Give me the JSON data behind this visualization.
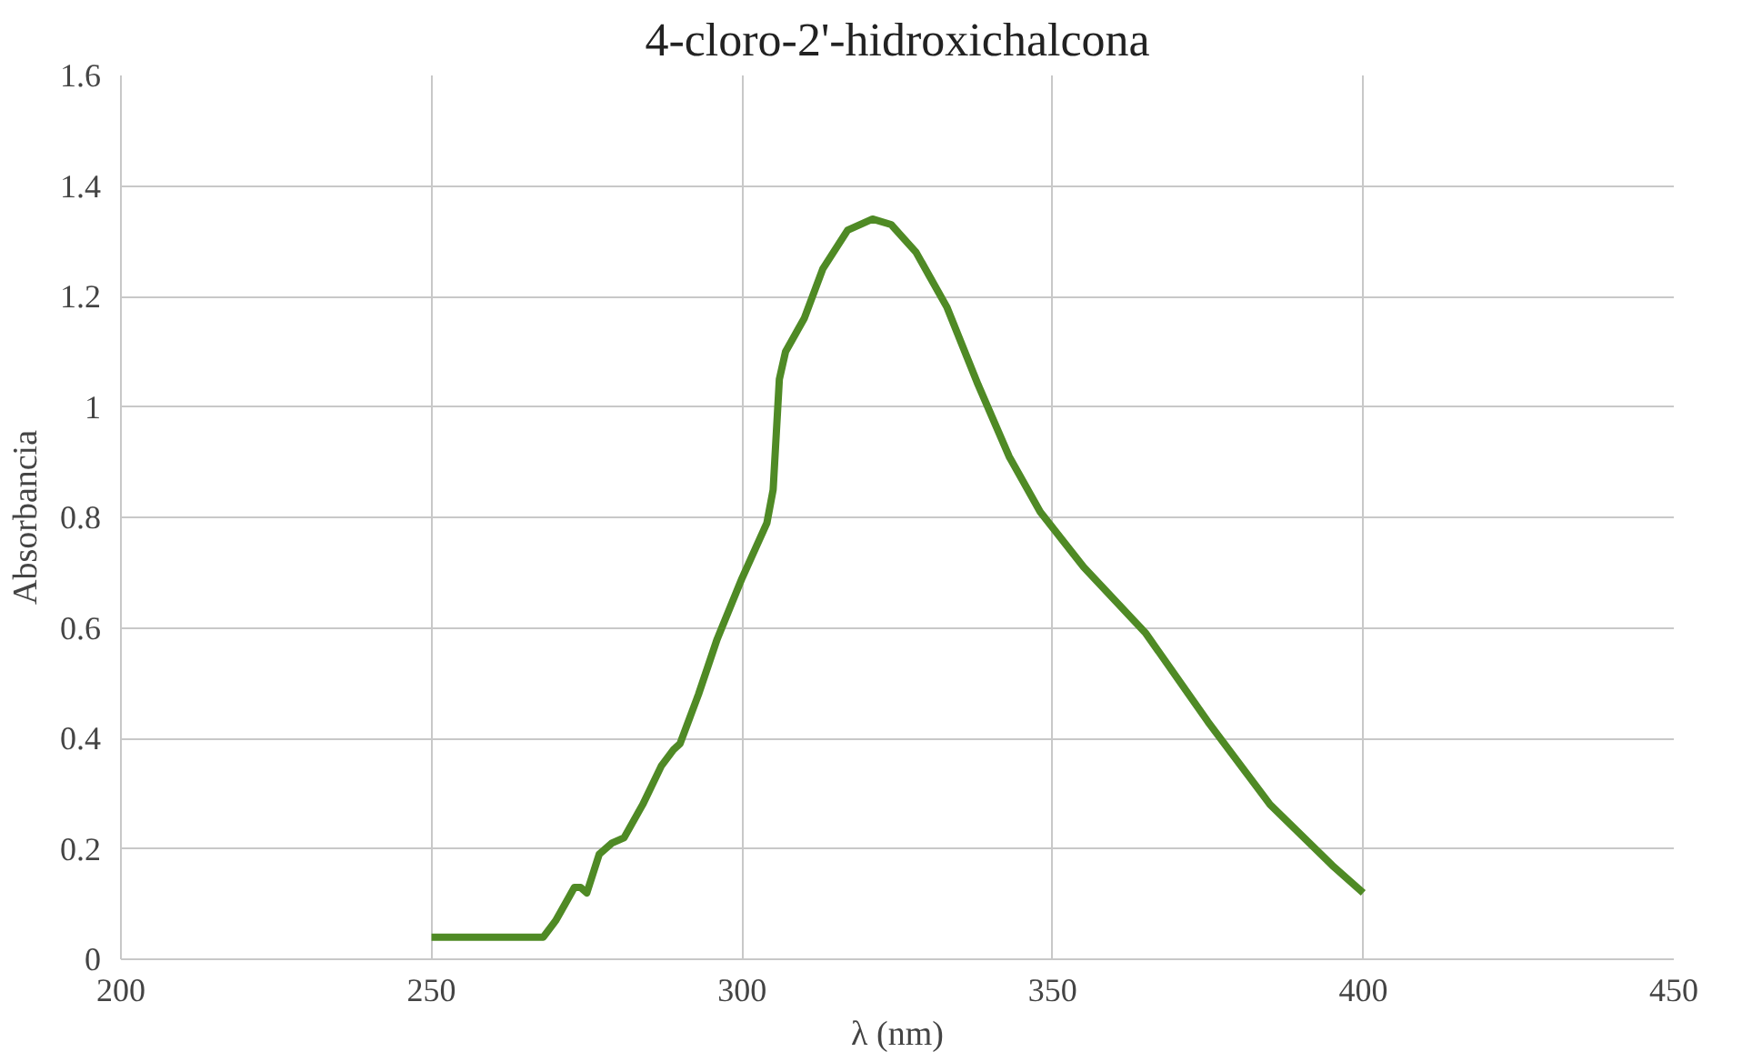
{
  "chart_data": {
    "type": "line",
    "title": "4-cloro-2'-hidroxichalcona",
    "xlabel": "λ (nm)",
    "ylabel": "Absorbancia",
    "series": [
      {
        "color": "#4f8a25",
        "x": [
          250,
          258,
          268,
          270,
          272,
          273,
          274,
          275,
          277,
          279,
          281,
          284,
          287,
          289,
          290,
          293,
          296,
          300,
          304,
          305,
          306,
          307,
          310,
          313,
          317,
          321,
          324,
          328,
          333,
          338,
          343,
          348,
          355,
          365,
          375,
          385,
          395,
          400
        ],
        "values": [
          0.04,
          0.04,
          0.04,
          0.07,
          0.11,
          0.13,
          0.13,
          0.12,
          0.19,
          0.21,
          0.22,
          0.28,
          0.35,
          0.38,
          0.39,
          0.48,
          0.58,
          0.69,
          0.79,
          0.85,
          1.05,
          1.1,
          1.16,
          1.25,
          1.32,
          1.34,
          1.33,
          1.28,
          1.18,
          1.04,
          0.91,
          0.81,
          0.71,
          0.59,
          0.43,
          0.28,
          0.17,
          0.12
        ]
      }
    ],
    "xlim": [
      200,
      450
    ],
    "xticks": [
      200,
      250,
      300,
      350,
      400,
      450
    ],
    "ylim": [
      0,
      1.6
    ],
    "yticks": [
      {
        "value": 0,
        "label": "0"
      },
      {
        "value": 0.2,
        "label": "0.2"
      },
      {
        "value": 0.4,
        "label": "0.4"
      },
      {
        "value": 0.6,
        "label": "0.6"
      },
      {
        "value": 0.8,
        "label": "0.8"
      },
      {
        "value": 1,
        "label": "1"
      },
      {
        "value": 1.2,
        "label": "1.2"
      },
      {
        "value": 1.4,
        "label": "1.4"
      },
      {
        "value": 1.6,
        "label": "1.6"
      }
    ],
    "grid": true,
    "marker": "none",
    "line_style": "solid"
  }
}
